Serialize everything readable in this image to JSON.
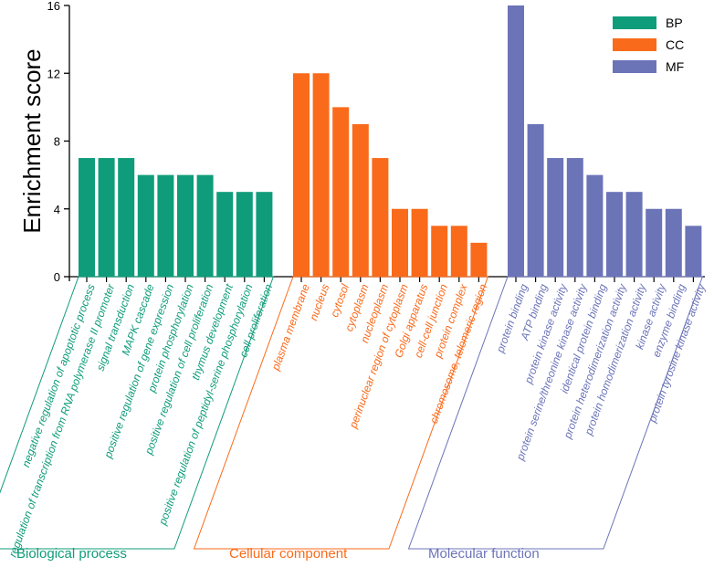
{
  "chart_data": {
    "type": "bar",
    "ylabel": "Enrichment score",
    "ylim": [
      0,
      16
    ],
    "yticks": [
      0,
      4,
      8,
      12,
      16
    ],
    "legend_position": "top-right",
    "groups": [
      {
        "key": "BP",
        "name": "Biological process",
        "color": "#0f9c7a",
        "categories": [
          "negative regulation of apoptotic process",
          "regulation of transcription from RNA polymerase II promoter",
          "signal transduction",
          "MAPK cascade",
          "positive regulation of gene expression",
          "protein phosphorylation",
          "positive regulation of cell proliferation",
          "thymus development",
          "positive regulation of peptidyl-serine phosphorylation",
          "cell proliferation"
        ],
        "values": [
          7,
          7,
          7,
          6,
          6,
          6,
          6,
          5,
          5,
          5
        ]
      },
      {
        "key": "CC",
        "name": "Cellular component",
        "color": "#f96a1b",
        "categories": [
          "plasma membrane",
          "nucleus",
          "cytosol",
          "cytoplasm",
          "nucleoplasm",
          "perinuclear region of cytoplasm",
          "Golgi apparatus",
          "cell-cell junction",
          "protein complex",
          "chromosome, telomeric region"
        ],
        "values": [
          12,
          12,
          10,
          9,
          7,
          4,
          4,
          3,
          3,
          2
        ]
      },
      {
        "key": "MF",
        "name": "Molecular function",
        "color": "#6c74b8",
        "categories": [
          "protein binding",
          "ATP binding",
          "protein kinase activity",
          "protein serine/threonine kinase activity",
          "identical protein binding",
          "protein heterodimerization activity",
          "protein homodimerization activity",
          "kinase activity",
          "enzyme binding",
          "protein tyrosine kinase activity"
        ],
        "values": [
          16,
          9,
          7,
          7,
          6,
          5,
          5,
          4,
          4,
          3
        ]
      }
    ]
  }
}
